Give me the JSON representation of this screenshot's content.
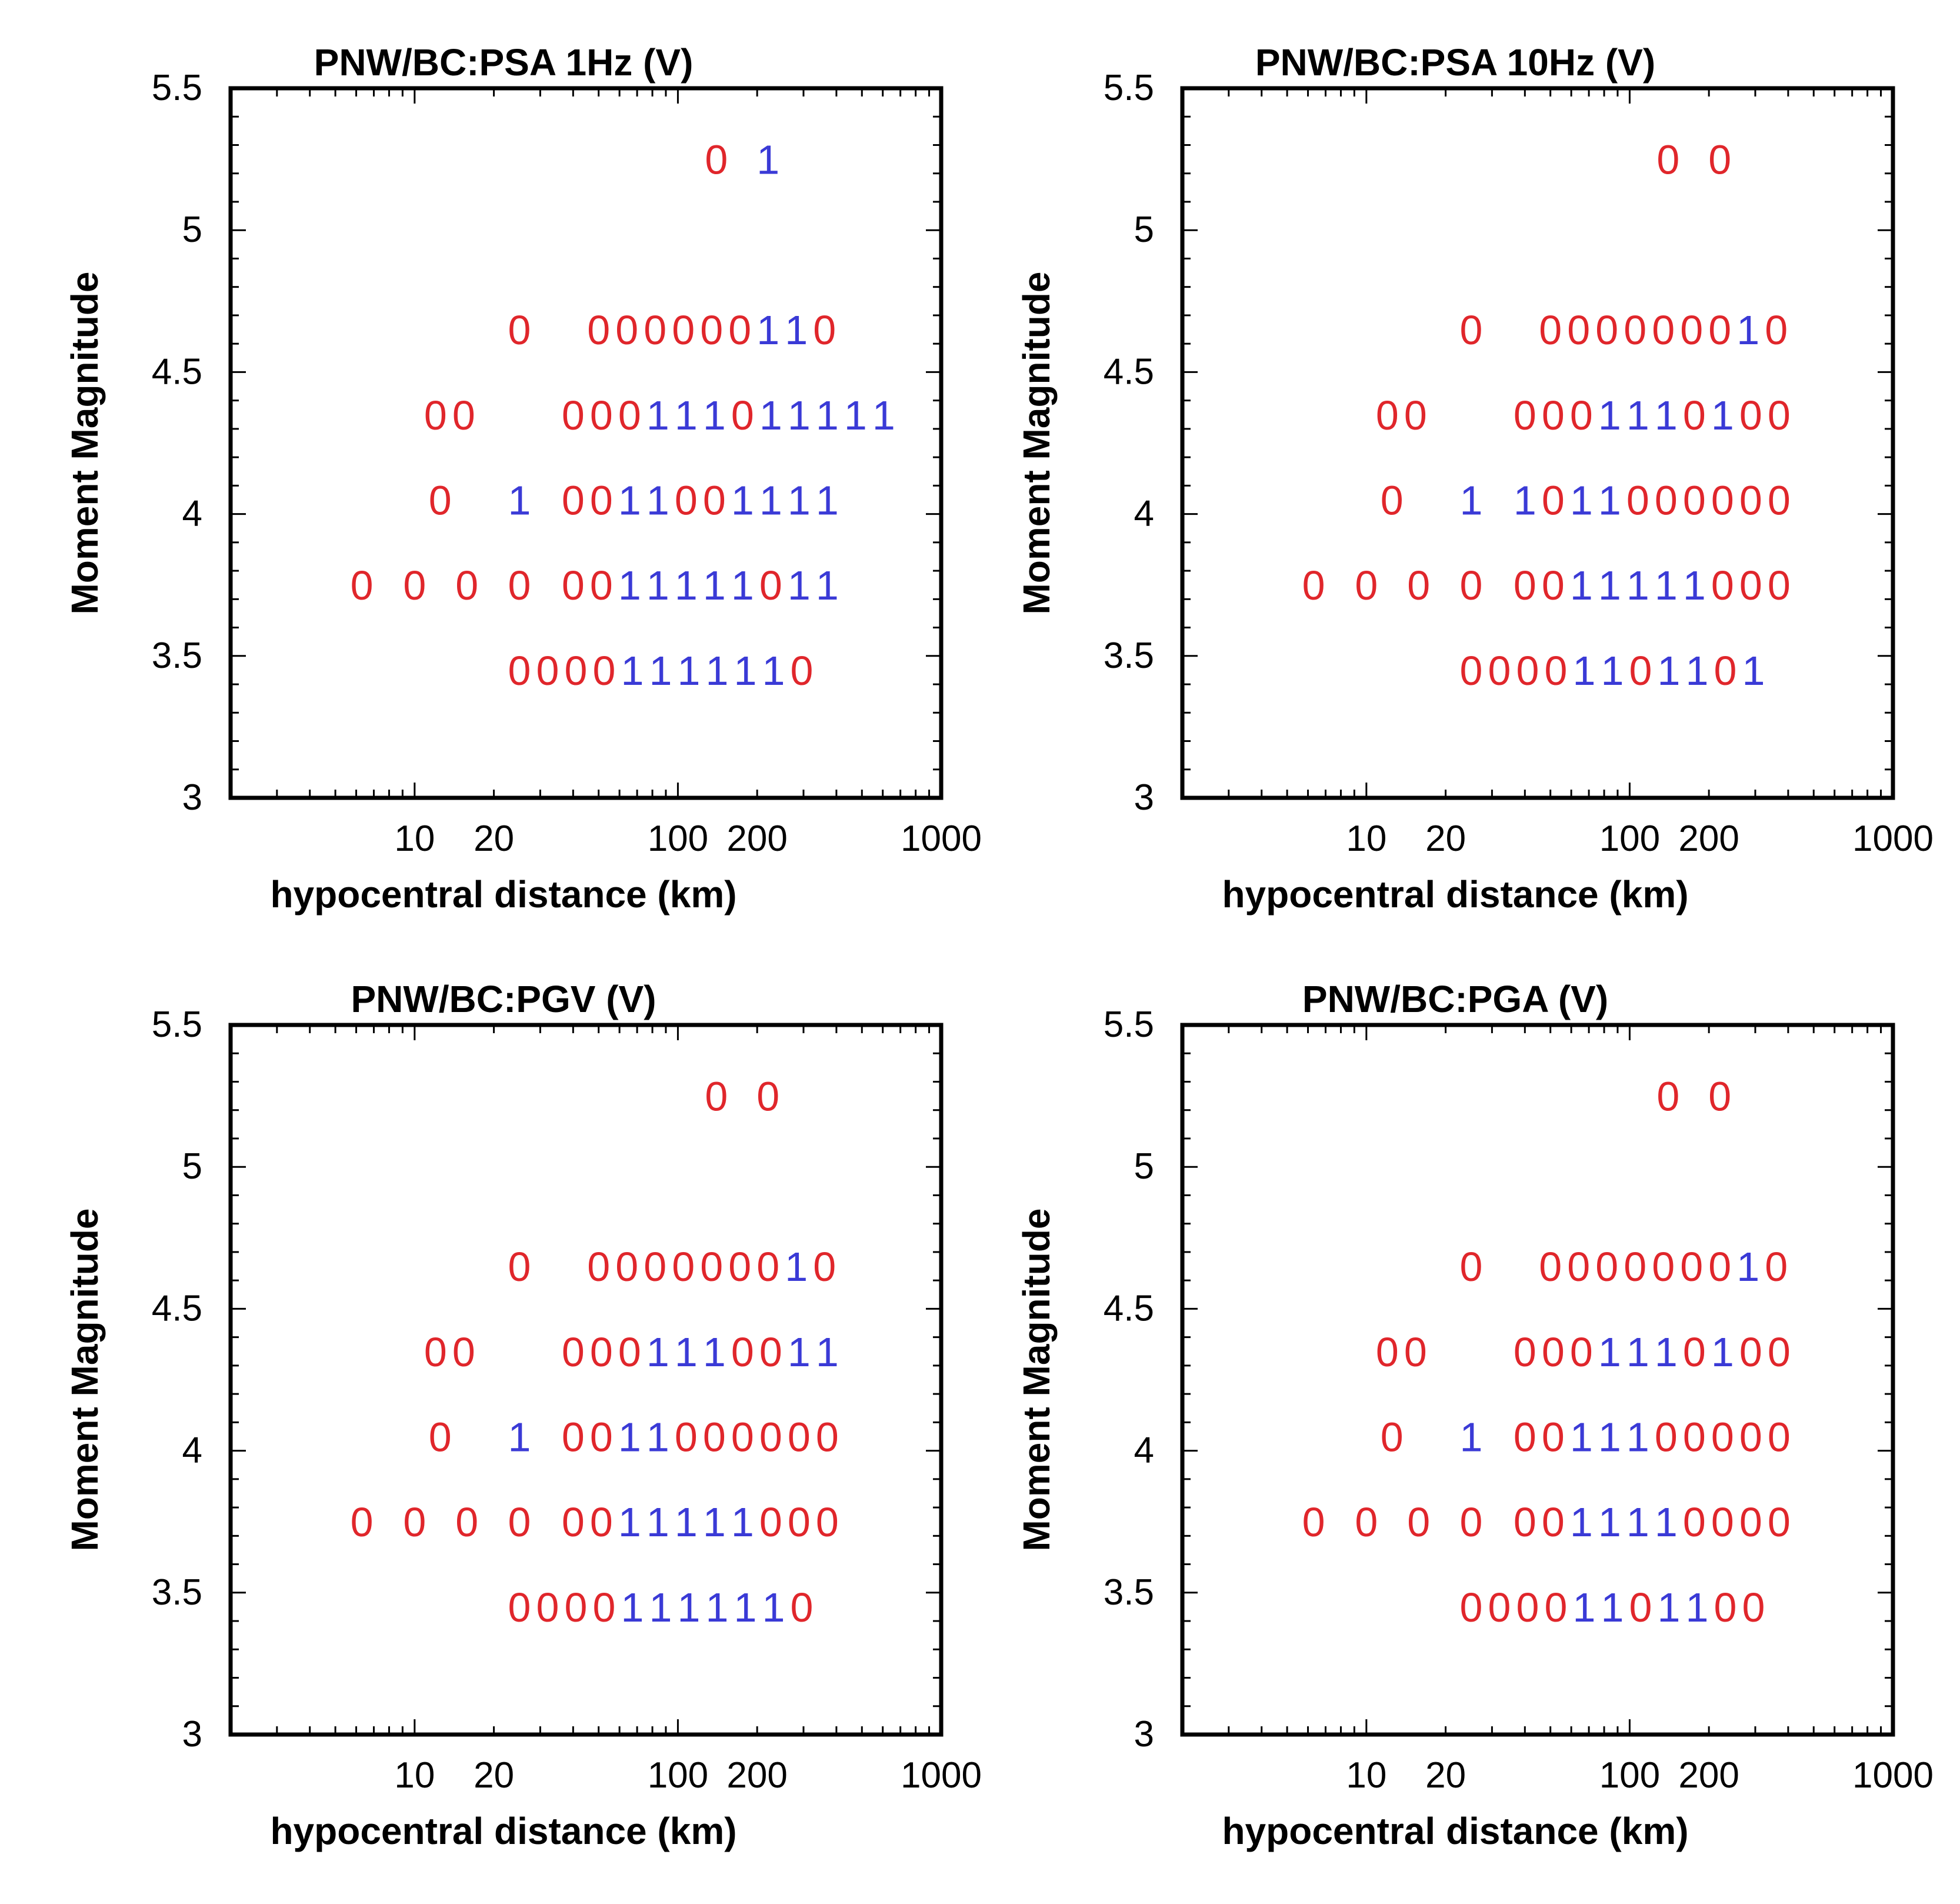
{
  "figure": {
    "x_tick_labels": [
      "10",
      "20",
      "100",
      "200",
      "1000"
    ],
    "y_tick_labels": [
      "3",
      "3.5",
      "4",
      "4.5",
      "5",
      "5.5"
    ]
  },
  "colors": {
    "zero": "#e0262b",
    "one": "#3a3ad6",
    "axes": "#000000"
  },
  "chart_data": [
    {
      "type": "scatter",
      "title": "PNW/BC:PSA 1Hz (V)",
      "xlabel": "hypocentral distance (km)",
      "ylabel": "Moment Magnitude",
      "xscale": "log",
      "xlim": [
        2,
        1000
      ],
      "ylim": [
        3,
        5.5
      ],
      "x_ticks": [
        10,
        20,
        100,
        200,
        1000
      ],
      "y_ticks": [
        3,
        3.5,
        4,
        4.5,
        5,
        5.5
      ],
      "grid": false,
      "marker_text": "digit 0 or 1 per magnitude/distance bin",
      "rows": [
        {
          "magnitude": 5.25,
          "bins": [
            {
              "x": 140,
              "v": "0"
            },
            {
              "x": 220,
              "v": "1"
            }
          ]
        },
        {
          "magnitude": 4.65,
          "bins": [
            {
              "x": 25,
              "v": "0"
            },
            {
              "x": 50,
              "v": "000000110"
            }
          ]
        },
        {
          "magnitude": 4.35,
          "bins": [
            {
              "x": 12,
              "v": "00"
            },
            {
              "x": 40,
              "v": "000111011111"
            }
          ]
        },
        {
          "magnitude": 4.05,
          "bins": [
            {
              "x": 12.5,
              "v": "0"
            },
            {
              "x": 25,
              "v": "1"
            },
            {
              "x": 40,
              "v": "0011001111"
            }
          ]
        },
        {
          "magnitude": 3.75,
          "bins": [
            {
              "x": 6.3,
              "v": "0"
            },
            {
              "x": 10,
              "v": "0"
            },
            {
              "x": 15.8,
              "v": "0"
            },
            {
              "x": 25,
              "v": "0"
            },
            {
              "x": 40,
              "v": "0011111011"
            }
          ]
        },
        {
          "magnitude": 3.45,
          "bins": [
            {
              "x": 25,
              "v": "00001111110"
            }
          ]
        }
      ]
    },
    {
      "type": "scatter",
      "title": "PNW/BC:PSA 10Hz (V)",
      "xlabel": "hypocentral distance (km)",
      "ylabel": "Moment Magnitude",
      "xscale": "log",
      "xlim": [
        2,
        1000
      ],
      "ylim": [
        3,
        5.5
      ],
      "x_ticks": [
        10,
        20,
        100,
        200,
        1000
      ],
      "y_ticks": [
        3,
        3.5,
        4,
        4.5,
        5,
        5.5
      ],
      "grid": false,
      "rows": [
        {
          "magnitude": 5.25,
          "bins": [
            {
              "x": 140,
              "v": "0"
            },
            {
              "x": 220,
              "v": "0"
            }
          ]
        },
        {
          "magnitude": 4.65,
          "bins": [
            {
              "x": 25,
              "v": "0"
            },
            {
              "x": 50,
              "v": "000000010"
            }
          ]
        },
        {
          "magnitude": 4.35,
          "bins": [
            {
              "x": 12,
              "v": "00"
            },
            {
              "x": 40,
              "v": "0001110100"
            }
          ]
        },
        {
          "magnitude": 4.05,
          "bins": [
            {
              "x": 12.5,
              "v": "0"
            },
            {
              "x": 25,
              "v": "1"
            },
            {
              "x": 40,
              "v": "1011000000"
            }
          ]
        },
        {
          "magnitude": 3.75,
          "bins": [
            {
              "x": 6.3,
              "v": "0"
            },
            {
              "x": 10,
              "v": "0"
            },
            {
              "x": 15.8,
              "v": "0"
            },
            {
              "x": 25,
              "v": "0"
            },
            {
              "x": 40,
              "v": "0011111000"
            }
          ]
        },
        {
          "magnitude": 3.45,
          "bins": [
            {
              "x": 25,
              "v": "00001101101"
            }
          ]
        }
      ]
    },
    {
      "type": "scatter",
      "title": "PNW/BC:PGV (V)",
      "xlabel": "hypocentral distance (km)",
      "ylabel": "Moment Magnitude",
      "xscale": "log",
      "xlim": [
        2,
        1000
      ],
      "ylim": [
        3,
        5.5
      ],
      "x_ticks": [
        10,
        20,
        100,
        200,
        1000
      ],
      "y_ticks": [
        3,
        3.5,
        4,
        4.5,
        5,
        5.5
      ],
      "grid": false,
      "rows": [
        {
          "magnitude": 5.25,
          "bins": [
            {
              "x": 140,
              "v": "0"
            },
            {
              "x": 220,
              "v": "0"
            }
          ]
        },
        {
          "magnitude": 4.65,
          "bins": [
            {
              "x": 25,
              "v": "0"
            },
            {
              "x": 50,
              "v": "000000010"
            }
          ]
        },
        {
          "magnitude": 4.35,
          "bins": [
            {
              "x": 12,
              "v": "00"
            },
            {
              "x": 40,
              "v": "0001110011"
            }
          ]
        },
        {
          "magnitude": 4.05,
          "bins": [
            {
              "x": 12.5,
              "v": "0"
            },
            {
              "x": 25,
              "v": "1"
            },
            {
              "x": 40,
              "v": "0011000000"
            }
          ]
        },
        {
          "magnitude": 3.75,
          "bins": [
            {
              "x": 6.3,
              "v": "0"
            },
            {
              "x": 10,
              "v": "0"
            },
            {
              "x": 15.8,
              "v": "0"
            },
            {
              "x": 25,
              "v": "0"
            },
            {
              "x": 40,
              "v": "0011111000"
            }
          ]
        },
        {
          "magnitude": 3.45,
          "bins": [
            {
              "x": 25,
              "v": "00001111110"
            }
          ]
        }
      ]
    },
    {
      "type": "scatter",
      "title": "PNW/BC:PGA (V)",
      "xlabel": "hypocentral distance (km)",
      "ylabel": "Moment Magnitude",
      "xscale": "log",
      "xlim": [
        2,
        1000
      ],
      "ylim": [
        3,
        5.5
      ],
      "x_ticks": [
        10,
        20,
        100,
        200,
        1000
      ],
      "y_ticks": [
        3,
        3.5,
        4,
        4.5,
        5,
        5.5
      ],
      "grid": false,
      "rows": [
        {
          "magnitude": 5.25,
          "bins": [
            {
              "x": 140,
              "v": "0"
            },
            {
              "x": 220,
              "v": "0"
            }
          ]
        },
        {
          "magnitude": 4.65,
          "bins": [
            {
              "x": 25,
              "v": "0"
            },
            {
              "x": 50,
              "v": "000000010"
            }
          ]
        },
        {
          "magnitude": 4.35,
          "bins": [
            {
              "x": 12,
              "v": "00"
            },
            {
              "x": 40,
              "v": "0001110100"
            }
          ]
        },
        {
          "magnitude": 4.05,
          "bins": [
            {
              "x": 12.5,
              "v": "0"
            },
            {
              "x": 25,
              "v": "1"
            },
            {
              "x": 40,
              "v": "0011100000"
            }
          ]
        },
        {
          "magnitude": 3.75,
          "bins": [
            {
              "x": 6.3,
              "v": "0"
            },
            {
              "x": 10,
              "v": "0"
            },
            {
              "x": 15.8,
              "v": "0"
            },
            {
              "x": 25,
              "v": "0"
            },
            {
              "x": 40,
              "v": "0011110000"
            }
          ]
        },
        {
          "magnitude": 3.45,
          "bins": [
            {
              "x": 25,
              "v": "00001101100"
            }
          ]
        }
      ]
    }
  ]
}
